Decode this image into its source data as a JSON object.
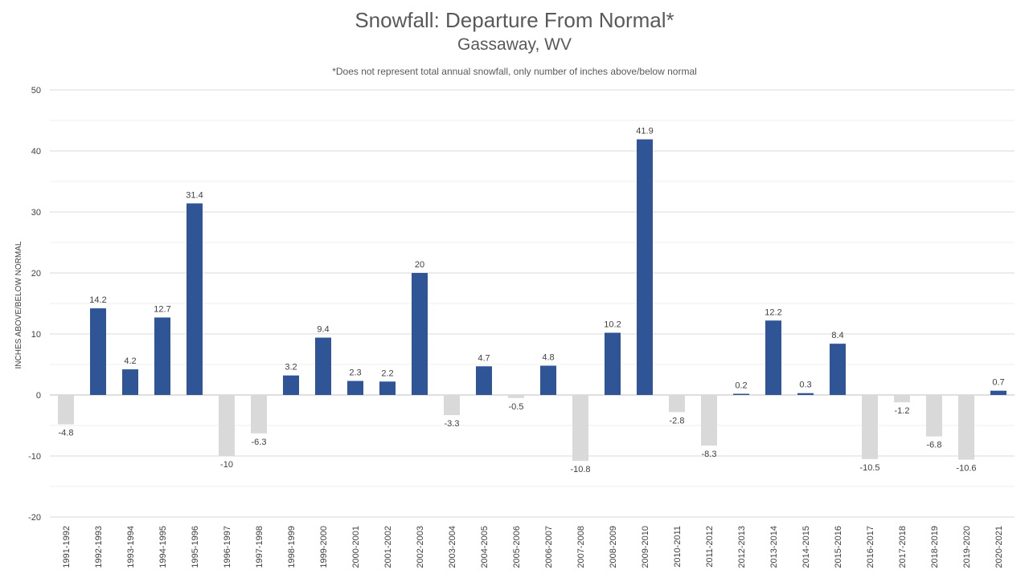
{
  "chart_data": {
    "type": "bar",
    "title": "Snowfall: Departure From Normal*",
    "subtitle": "Gassaway, WV",
    "note": "*Does not represent  total annual snowfall, only number of inches above/below normal",
    "ylabel": "INCHES ABOVE/BELOW NORMAL",
    "xlabel": "",
    "ylim": [
      -20,
      50
    ],
    "yticks": [
      -20,
      -10,
      0,
      10,
      20,
      30,
      40,
      50
    ],
    "grid": true,
    "categories": [
      "1991-1992",
      "1992-1993",
      "1993-1994",
      "1994-1995",
      "1995-1996",
      "1996-1997",
      "1997-1998",
      "1998-1999",
      "1999-2000",
      "2000-2001",
      "2001-2002",
      "2002-2003",
      "2003-2004",
      "2004-2005",
      "2005-2006",
      "2006-2007",
      "2007-2008",
      "2008-2009",
      "2009-2010",
      "2010-2011",
      "2011-2012",
      "2012-2013",
      "2013-2014",
      "2014-2015",
      "2015-2016",
      "2016-2017",
      "2017-2018",
      "2018-2019",
      "2019-2020",
      "2020-2021"
    ],
    "values": [
      -4.8,
      14.2,
      4.2,
      12.7,
      31.4,
      -10,
      -6.3,
      3.2,
      9.4,
      2.3,
      2.2,
      20,
      -3.3,
      4.7,
      -0.5,
      4.8,
      -10.8,
      10.2,
      41.9,
      -2.8,
      -8.3,
      0.2,
      12.2,
      0.3,
      8.4,
      -10.5,
      -1.2,
      -6.8,
      -10.6,
      0.7
    ],
    "colors": {
      "positive": "#2F5597",
      "negative": "#D9D9D9"
    }
  }
}
